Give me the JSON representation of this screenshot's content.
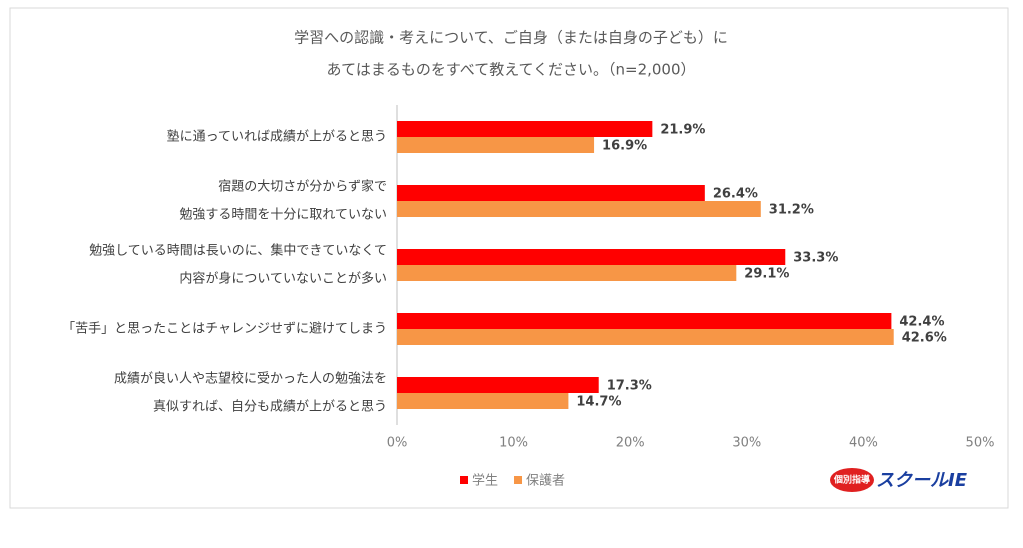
{
  "chart_data": {
    "type": "bar",
    "orientation": "horizontal",
    "title": [
      "学習への認識・考えについて、ご自身（または自身の子ども）に",
      "あてはまるものをすべて教えてください。（n=2,000）"
    ],
    "categories": [
      [
        "塾に通っていれば成績が上がると思う"
      ],
      [
        "宿題の大切さが分からず家で",
        "勉強する時間を十分に取れていない"
      ],
      [
        "勉強している時間は長いのに、集中できていなくて",
        "内容が身についていないことが多い"
      ],
      [
        "「苦手」と思ったことはチャレンジせずに避けてしまう"
      ],
      [
        "成績が良い人や志望校に受かった人の勉強法を",
        "真似すれば、自分も成績が上がると思う"
      ]
    ],
    "series": [
      {
        "name": "学生",
        "color": "#ff0000",
        "values": [
          21.9,
          26.4,
          33.3,
          42.4,
          17.3
        ],
        "value_labels": [
          "21.9%",
          "26.4%",
          "33.3%",
          "42.4%",
          "17.3%"
        ]
      },
      {
        "name": "保護者",
        "color": "#f79646",
        "values": [
          16.9,
          31.2,
          29.1,
          42.6,
          14.7
        ],
        "value_labels": [
          "16.9%",
          "31.2%",
          "29.1%",
          "42.6%",
          "14.7%"
        ]
      }
    ],
    "xlim": [
      0,
      50
    ],
    "xticks": [
      {
        "value": 0,
        "label": "0%"
      },
      {
        "value": 10,
        "label": "10%"
      },
      {
        "value": 20,
        "label": "20%"
      },
      {
        "value": 30,
        "label": "30%"
      },
      {
        "value": 40,
        "label": "40%"
      },
      {
        "value": 50,
        "label": "50%"
      }
    ],
    "grid": false,
    "legend": "bottom"
  },
  "logo": {
    "small": "個別指導",
    "main": "スクールIE"
  }
}
